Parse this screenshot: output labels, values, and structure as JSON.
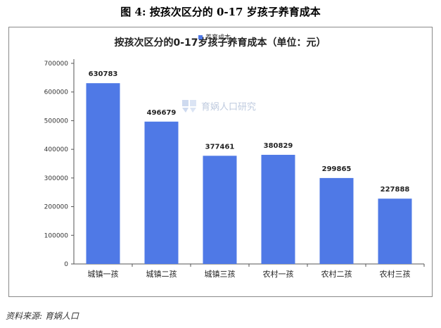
{
  "figure": {
    "caption": "图 4: 按孩次区分的 0-17 岁孩子养育成本",
    "source": "资料来源: 育娲人口"
  },
  "watermark": {
    "text": "育娲人口研究",
    "icon": "yuwa-logo-icon"
  },
  "colors": {
    "bar": "#4f79e6",
    "axis": "#555555",
    "frame": "#8a8a8a"
  },
  "chart_data": {
    "type": "bar",
    "title": "按孩次区分的0-17岁孩子养育成本（单位：元）",
    "xlabel": "",
    "ylabel": "",
    "categories": [
      "城镇一孩",
      "城镇二孩",
      "城镇三孩",
      "农村一孩",
      "农村二孩",
      "农村三孩"
    ],
    "series": [
      {
        "name": "养育成本",
        "values": [
          630783,
          496679,
          377461,
          380829,
          299865,
          227888
        ]
      }
    ],
    "data_labels": [
      "630783",
      "496679",
      "377461",
      "380829",
      "299865",
      "227888"
    ],
    "ylim": [
      0,
      700000
    ],
    "yticks": [
      "0",
      "100000",
      "200000",
      "300000",
      "400000",
      "500000",
      "600000",
      "700000"
    ],
    "grid": false,
    "legend_position": "top-center"
  }
}
